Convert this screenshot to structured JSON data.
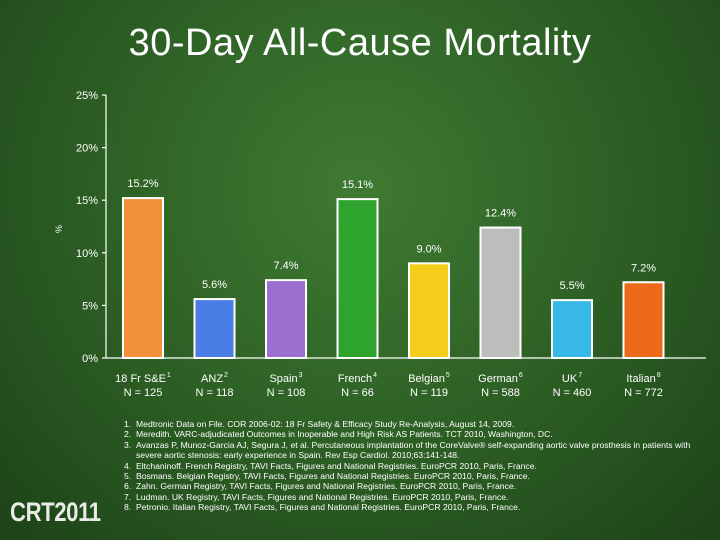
{
  "title": "30-Day All-Cause Mortality",
  "chart_data": {
    "type": "bar",
    "ylabel": "%",
    "ylim": [
      0,
      25
    ],
    "y_ticks": [
      "0%",
      "5%",
      "10%",
      "15%",
      "20%",
      "25%"
    ],
    "categories": [
      {
        "name": "18 Fr S&E",
        "sup": "1",
        "n": "N = 125"
      },
      {
        "name": "ANZ",
        "sup": "2",
        "n": "N = 118"
      },
      {
        "name": "Spain",
        "sup": "3",
        "n": "N = 108"
      },
      {
        "name": "French",
        "sup": "4",
        "n": "N = 66"
      },
      {
        "name": "Belgian",
        "sup": "5",
        "n": "N = 119"
      },
      {
        "name": "German",
        "sup": "6",
        "n": "N = 588"
      },
      {
        "name": "UK",
        "sup": "7",
        "n": "N = 460"
      },
      {
        "name": "Italian",
        "sup": "8",
        "n": "N = 772"
      }
    ],
    "values": [
      15.2,
      5.6,
      7.4,
      15.1,
      9.0,
      12.4,
      5.5,
      7.2
    ],
    "value_labels": [
      "15.2%",
      "5.6%",
      "7.4%",
      "15.1%",
      "9.0%",
      "12.4%",
      "5.5%",
      "7.2%"
    ],
    "colors": [
      "#f2913a",
      "#4a7ee6",
      "#9a6fcf",
      "#2ea32e",
      "#f4cc1a",
      "#bdbdbd",
      "#38b8e6",
      "#ec6a1a"
    ]
  },
  "references": [
    {
      "num": "1.",
      "text": "Medtronic Data on File. COR 2006-02: 18 Fr Safety & Efficacy Study Re-Analysis, August 14, 2009."
    },
    {
      "num": "2.",
      "text": "Meredith. VARC-adjudicated Outcomes in Inoperable and High Risk AS Patients. TCT 2010, Washington, DC."
    },
    {
      "num": "3.",
      "text": "Avanzas P, Munoz-Garcia AJ, Segura J, et al. Percutaneous implantation of the CoreValve® self-expanding aortic valve prosthesis in patients with severe aortic stenosis: early experience in Spain. Rev Esp Cardiol. 2010;63:141-148."
    },
    {
      "num": "4.",
      "text": "Eltchaninoff. French Registry, TAVI Facts, Figures and National Registries. EuroPCR 2010, Paris, France."
    },
    {
      "num": "5.",
      "text": "Bosmans. Belgian Registry, TAVI Facts, Figures and National Registries. EuroPCR 2010, Paris, France."
    },
    {
      "num": "6.",
      "text": "Zahn. German Registry, TAVI Facts, Figures and National Registries. EuroPCR 2010, Paris, France."
    },
    {
      "num": "7.",
      "text": "Ludman. UK Registry, TAVI Facts, Figures and National Registries. EuroPCR 2010, Paris, France."
    },
    {
      "num": "8.",
      "text": "Petronio. Italian Registry, TAVI Facts, Figures and National Registries. EuroPCR 2010, Paris, France."
    }
  ],
  "logo": "CRT2011"
}
